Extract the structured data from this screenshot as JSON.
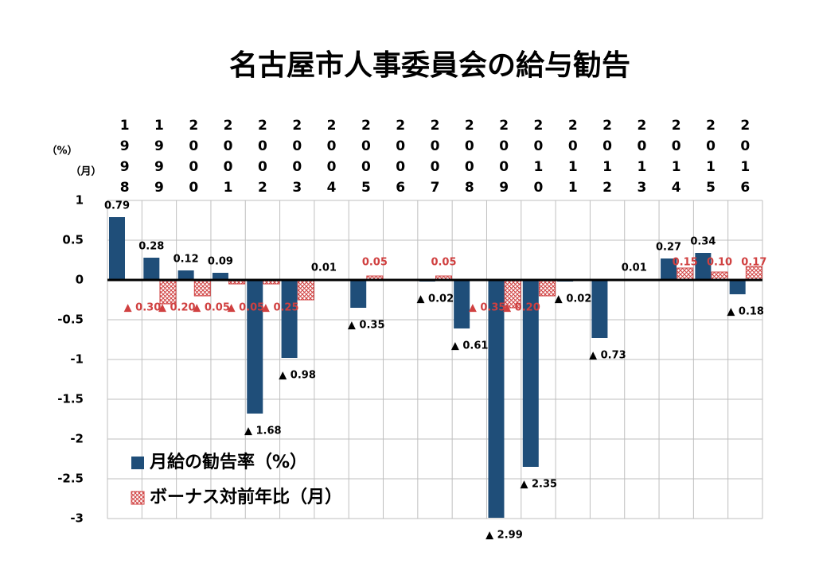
{
  "chart_data": {
    "type": "bar",
    "title": "名古屋市人事委員会の給与勧告",
    "y_unit_labels": [
      "（%）",
      "（月）"
    ],
    "categories": [
      "1998",
      "1999",
      "2000",
      "2001",
      "2002",
      "2003",
      "2004",
      "2005",
      "2006",
      "2007",
      "2008",
      "2009",
      "2010",
      "2011",
      "2012",
      "2013",
      "2014",
      "2015",
      "2016"
    ],
    "series": [
      {
        "name": "月給の勧告率（%）",
        "color": "#1f4e79",
        "values": [
          0.79,
          0.28,
          0.12,
          0.09,
          -1.68,
          -0.98,
          0.01,
          -0.35,
          null,
          -0.02,
          -0.61,
          -2.99,
          -2.35,
          -0.02,
          -0.73,
          0.01,
          0.27,
          0.34,
          -0.18
        ],
        "value_labels": [
          "0.79",
          "0.28",
          "0.12",
          "0.09",
          "▲ 1.68",
          "▲ 0.98",
          "0.01",
          "▲ 0.35",
          null,
          "▲ 0.02",
          "▲ 0.61",
          "▲ 2.99",
          "▲ 2.35",
          "▲ 0.02",
          "▲ 0.73",
          "0.01",
          "0.27",
          "0.34",
          "▲ 0.18"
        ]
      },
      {
        "name": "ボーナス対前年比（月）",
        "color": "#d04040",
        "values": [
          null,
          -0.3,
          -0.2,
          -0.05,
          -0.05,
          -0.25,
          null,
          0.05,
          null,
          0.05,
          null,
          -0.35,
          -0.2,
          null,
          null,
          null,
          0.15,
          0.1,
          0.17
        ],
        "value_labels": [
          null,
          "▲ 0.30",
          "▲ 0.20",
          "▲ 0.05",
          "▲ 0.05",
          "▲ 0.25",
          null,
          "0.05",
          null,
          "0.05",
          null,
          "▲ 0.35",
          "▲ 0.20",
          null,
          null,
          null,
          "0.15",
          "0.10",
          "0.17"
        ]
      }
    ],
    "ylim": [
      -3,
      1
    ],
    "yticks": [
      -3,
      -2.5,
      -2,
      -1.5,
      -1,
      -0.5,
      0,
      0.5,
      1
    ],
    "grid": true
  }
}
